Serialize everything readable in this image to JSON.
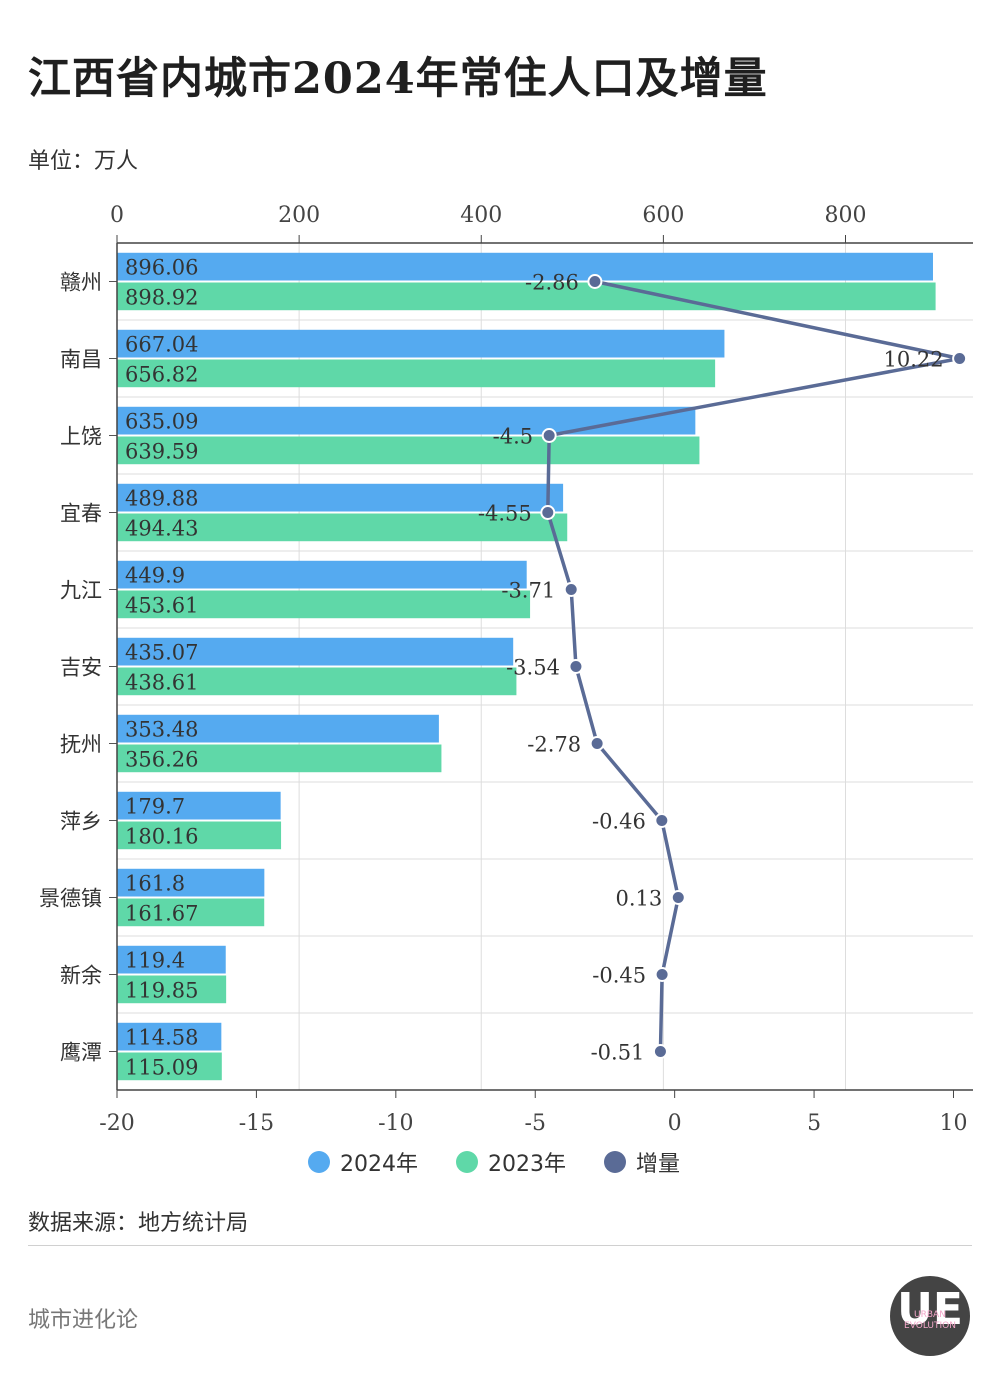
{
  "header": {
    "title": "江西省内城市2024年常住人口及增量",
    "unit": "单位：万人"
  },
  "colors": {
    "series_2024": "#55aaf0",
    "series_2023": "#5fd8a8",
    "increment": "#5a6b96",
    "grid": "#dddddd"
  },
  "chart_data": {
    "type": "bar",
    "orientation": "horizontal",
    "categories": [
      "赣州",
      "南昌",
      "上饶",
      "宜春",
      "九江",
      "吉安",
      "抚州",
      "萍乡",
      "景德镇",
      "新余",
      "鹰潭"
    ],
    "top_axis": {
      "ticks": [
        "0",
        "200",
        "400",
        "600",
        "800"
      ],
      "range": [
        0,
        940
      ]
    },
    "bottom_axis": {
      "ticks": [
        "-20",
        "-15",
        "-10",
        "-5",
        "0",
        "5",
        "10"
      ],
      "range": [
        -20,
        10.7
      ]
    },
    "grid": true,
    "legend_position": "bottom",
    "series": [
      {
        "name": "2024年",
        "type": "bar",
        "axis": "top",
        "values": [
          896.06,
          667.04,
          635.09,
          489.88,
          449.9,
          435.07,
          353.48,
          179.7,
          161.8,
          119.4,
          114.58
        ],
        "labels": [
          "896.06",
          "667.04",
          "635.09",
          "489.88",
          "449.9",
          "435.07",
          "353.48",
          "179.7",
          "161.8",
          "119.4",
          "114.58"
        ]
      },
      {
        "name": "2023年",
        "type": "bar",
        "axis": "top",
        "values": [
          898.92,
          656.82,
          639.59,
          494.43,
          453.61,
          438.61,
          356.26,
          180.16,
          161.67,
          119.85,
          115.09
        ],
        "labels": [
          "898.92",
          "656.82",
          "639.59",
          "494.43",
          "453.61",
          "438.61",
          "356.26",
          "180.16",
          "161.67",
          "119.85",
          "115.09"
        ]
      },
      {
        "name": "增量",
        "type": "line",
        "axis": "bottom",
        "values": [
          -2.86,
          10.22,
          -4.5,
          -4.55,
          -3.71,
          -3.54,
          -2.78,
          -0.46,
          0.13,
          -0.45,
          -0.51
        ],
        "labels": [
          "-2.86",
          "10.22",
          "-4.5",
          "-4.55",
          "-3.71",
          "-3.54",
          "-2.78",
          "-0.46",
          "0.13",
          "-0.45",
          "-0.51"
        ]
      }
    ]
  },
  "footer": {
    "source": "数据来源：地方统计局",
    "brand": "城市进化论",
    "logo_mark": "UE",
    "logo_sub": "URBAN EVOLUTION"
  }
}
